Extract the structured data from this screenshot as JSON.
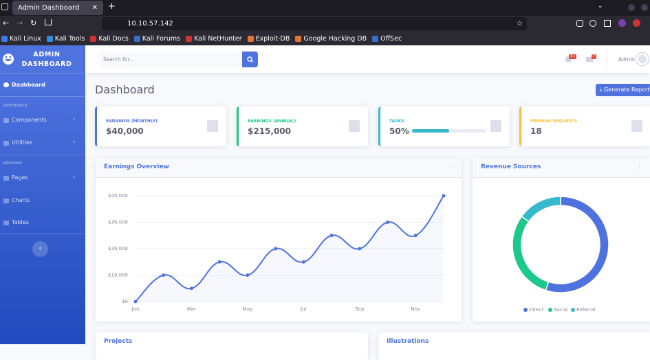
{
  "browser": {
    "tab_title": "Admin Dashboard",
    "url": "10.10.57.142",
    "bookmarks": [
      "Kali Linux",
      "Kali Tools",
      "Kali Docs",
      "Kali Forums",
      "Kali NetHunter",
      "Exploit-DB",
      "Google Hacking DB",
      "OffSec"
    ]
  },
  "sidebar": {
    "brand": "ADMIN DASHBOARD",
    "dashboard": "Dashboard",
    "heading_interface": "INTERFACE",
    "components": "Components",
    "utilities": "Utilities",
    "heading_addons": "ADDONS",
    "pages": "Pages",
    "charts": "Charts",
    "tables": "Tables"
  },
  "topbar": {
    "search_placeholder": "Search for...",
    "alerts_badge": "3+",
    "messages_badge": "7",
    "user": "Admin"
  },
  "page_title": "Dashboard",
  "report_button": "Generate Report",
  "cards": [
    {
      "label": "EARNINGS (MONTHLY)",
      "value": "$40,000"
    },
    {
      "label": "EARNINGS (ANNUAL)",
      "value": "$215,000"
    },
    {
      "label": "TASKS",
      "value": "50%",
      "progress": 50
    },
    {
      "label": "PENDING REQUESTS",
      "value": "18"
    }
  ],
  "chart_data": [
    {
      "type": "line",
      "title": "Earnings Overview",
      "categories": [
        "Jan",
        null,
        "Mar",
        null,
        "May",
        null,
        "Jul",
        null,
        "Sep",
        null,
        "Nov",
        null
      ],
      "values": [
        0,
        10000,
        5000,
        15000,
        10000,
        20000,
        15000,
        25000,
        20000,
        30000,
        25000,
        40000
      ],
      "color": "#4e73df",
      "ylim": [
        0,
        40000
      ],
      "yticks": [
        {
          "value": 0,
          "label": "$0"
        },
        {
          "value": 10000,
          "label": "$10,000"
        },
        {
          "value": 20000,
          "label": "$20,000"
        },
        {
          "value": 30000,
          "label": "$30,000"
        },
        {
          "value": 40000,
          "label": "$40,000"
        }
      ],
      "grid": true
    },
    {
      "type": "pie",
      "title": "Revenue Sources",
      "categories": [
        "Direct",
        "Social",
        "Referral"
      ],
      "values": [
        55,
        30,
        15
      ],
      "colors": [
        "#4e73df",
        "#1cc88a",
        "#36b9cc"
      ]
    }
  ],
  "bottom_cards": [
    "Projects",
    "Illustrations"
  ]
}
